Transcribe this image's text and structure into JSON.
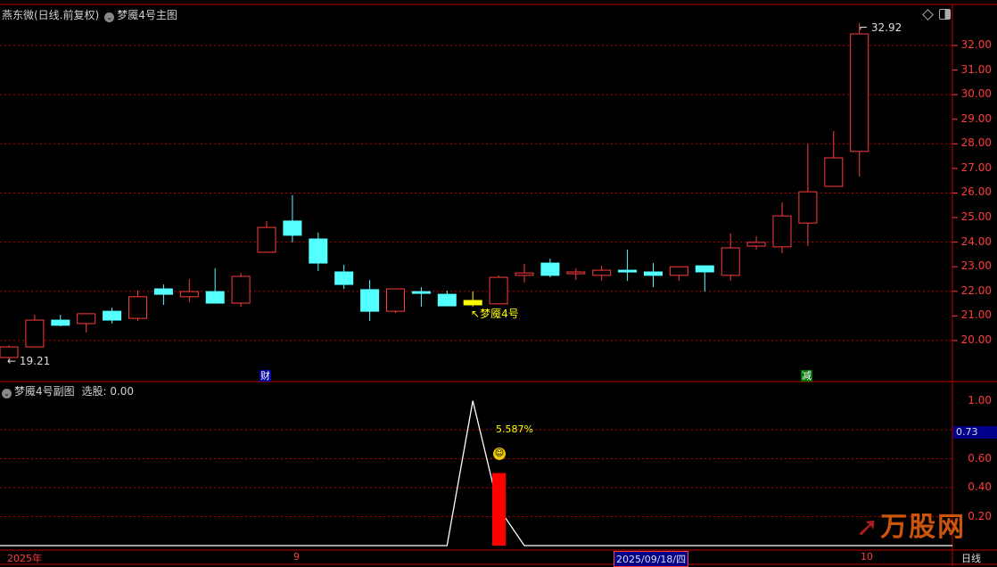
{
  "header": {
    "stock": "燕东微(日线.前复权)",
    "indicator_main": "梦魇4号主图"
  },
  "sub_header": {
    "indicator_sub": "梦魇4号副图",
    "label": "选股: 0.00"
  },
  "colors": {
    "up": "#ff3b3b",
    "down": "#54ffff",
    "signal": "#ffff00",
    "grid": "#c00000",
    "axis": "#ff3b3b"
  },
  "chart_data": [
    {
      "type": "candlestick",
      "yticks": [
        "32.00",
        "31.00",
        "30.00",
        "29.00",
        "28.00",
        "27.00",
        "26.00",
        "25.00",
        "24.00",
        "23.00",
        "22.00",
        "21.00",
        "20.00"
      ],
      "ylim": [
        19.0,
        33.2
      ],
      "grid_values": [
        32,
        30,
        28,
        26,
        24,
        22,
        20
      ],
      "candles": [
        {
          "o": 19.31,
          "h": 19.8,
          "l": 19.21,
          "c": 19.74
        },
        {
          "o": 19.74,
          "h": 21.05,
          "l": 19.74,
          "c": 20.83
        },
        {
          "o": 20.83,
          "h": 21.05,
          "l": 20.58,
          "c": 20.62
        },
        {
          "o": 20.69,
          "h": 21.09,
          "l": 20.33,
          "c": 21.09
        },
        {
          "o": 21.19,
          "h": 21.34,
          "l": 20.69,
          "c": 20.83
        },
        {
          "o": 20.9,
          "h": 22.03,
          "l": 20.8,
          "c": 21.78
        },
        {
          "o": 22.1,
          "h": 22.28,
          "l": 21.45,
          "c": 21.88
        },
        {
          "o": 21.78,
          "h": 22.5,
          "l": 21.56,
          "c": 21.99
        },
        {
          "o": 21.99,
          "h": 22.94,
          "l": 21.52,
          "c": 21.52
        },
        {
          "o": 21.52,
          "h": 22.75,
          "l": 21.38,
          "c": 22.61
        },
        {
          "o": 23.59,
          "h": 24.86,
          "l": 23.59,
          "c": 24.6
        },
        {
          "o": 24.86,
          "h": 25.91,
          "l": 23.99,
          "c": 24.28
        },
        {
          "o": 24.13,
          "h": 24.39,
          "l": 22.83,
          "c": 23.15
        },
        {
          "o": 22.79,
          "h": 23.08,
          "l": 22.1,
          "c": 22.28
        },
        {
          "o": 22.07,
          "h": 22.46,
          "l": 20.8,
          "c": 21.19
        },
        {
          "o": 21.19,
          "h": 22.1,
          "l": 21.12,
          "c": 22.1
        },
        {
          "o": 21.99,
          "h": 22.17,
          "l": 21.38,
          "c": 21.92
        },
        {
          "o": 21.88,
          "h": 22.03,
          "l": 21.41,
          "c": 21.41
        },
        {
          "o": 21.63,
          "h": 21.99,
          "l": 21.38,
          "c": 21.45,
          "signal": true
        },
        {
          "o": 21.49,
          "h": 22.65,
          "l": 21.49,
          "c": 22.57
        },
        {
          "o": 22.65,
          "h": 23.12,
          "l": 22.36,
          "c": 22.75
        },
        {
          "o": 23.15,
          "h": 23.33,
          "l": 22.57,
          "c": 22.65
        },
        {
          "o": 22.72,
          "h": 22.94,
          "l": 22.46,
          "c": 22.79
        },
        {
          "o": 22.65,
          "h": 23.04,
          "l": 22.43,
          "c": 22.86
        },
        {
          "o": 22.86,
          "h": 23.7,
          "l": 22.43,
          "c": 22.79
        },
        {
          "o": 22.79,
          "h": 23.15,
          "l": 22.17,
          "c": 22.65
        },
        {
          "o": 22.65,
          "h": 23.0,
          "l": 22.43,
          "c": 23.0
        },
        {
          "o": 23.04,
          "h": 23.04,
          "l": 21.99,
          "c": 22.79
        },
        {
          "o": 22.65,
          "h": 24.35,
          "l": 22.43,
          "c": 23.77
        },
        {
          "o": 23.84,
          "h": 24.24,
          "l": 23.7,
          "c": 23.99
        },
        {
          "o": 23.81,
          "h": 25.62,
          "l": 23.55,
          "c": 25.07
        },
        {
          "o": 24.78,
          "h": 27.98,
          "l": 23.84,
          "c": 26.05
        },
        {
          "o": 26.27,
          "h": 28.52,
          "l": 26.27,
          "c": 27.43
        },
        {
          "o": 27.69,
          "h": 32.92,
          "l": 26.67,
          "c": 32.47
        }
      ],
      "annotations": {
        "high": "32.92",
        "low": "19.21",
        "signal_label": "梦魇4号"
      },
      "event_marks": [
        {
          "index": 10,
          "text": "财",
          "color": "#0000a0"
        },
        {
          "index": 32,
          "text": "减",
          "color": "#007000"
        }
      ]
    },
    {
      "type": "line+bar",
      "yticks": [
        "1.00",
        "0.60",
        "0.40",
        "0.20"
      ],
      "ylim": [
        0,
        1.0
      ],
      "current_value": "0.73",
      "line_values": [
        0,
        0,
        0,
        0,
        0,
        0,
        0,
        0,
        0,
        0,
        0,
        0,
        0,
        0,
        0,
        0,
        0,
        0,
        1.0,
        0.26,
        0,
        0,
        0,
        0,
        0,
        0,
        0,
        0,
        0,
        0,
        0,
        0,
        0,
        0
      ],
      "bar": {
        "index": 19,
        "value": 0.5
      },
      "bar_label": "5.587%",
      "bar_icon": "smiley-icon"
    }
  ],
  "x_axis": {
    "labels": [
      "2025年",
      "9",
      "2025/09/18/四",
      "10"
    ],
    "period": "日线"
  },
  "logo": {
    "text": "万股网",
    "url": "www.201082.com"
  }
}
